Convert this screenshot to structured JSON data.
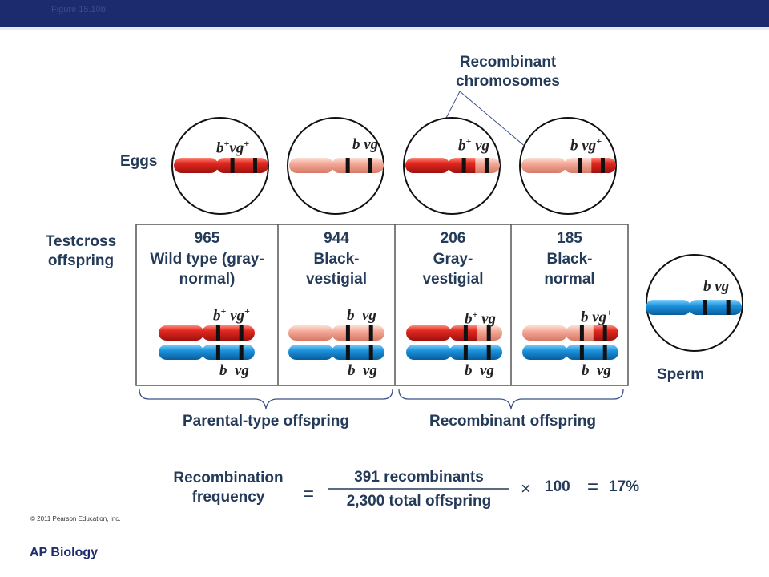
{
  "figure_label": "Figure 15.10b",
  "recombinant_chromosomes_label": "Recombinant chromosomes",
  "eggs_label": "Eggs",
  "testcross_label": "Testcross offspring",
  "sperm_label": "Sperm",
  "eggs": [
    {
      "gene1": "b",
      "sup1": "+",
      "gene2": "vg",
      "sup2": "+"
    },
    {
      "gene1": "b",
      "sup1": "",
      "gene2": "vg",
      "sup2": ""
    },
    {
      "gene1": "b",
      "sup1": "+",
      "gene2": "vg",
      "sup2": ""
    },
    {
      "gene1": "b",
      "sup1": "",
      "gene2": "vg",
      "sup2": "+"
    }
  ],
  "offspring": [
    {
      "count": "965",
      "phenotype": "Wild type (gray-normal)",
      "top_gene1": "b",
      "top_sup1": "+",
      "top_gene2": "vg",
      "top_sup2": "+",
      "bottom": "b  vg"
    },
    {
      "count": "944",
      "phenotype": "Black- vestigial",
      "top_gene1": "b",
      "top_sup1": "",
      "top_gene2": "vg",
      "top_sup2": "",
      "bottom": "b  vg"
    },
    {
      "count": "206",
      "phenotype": "Gray- vestigial",
      "top_gene1": "b",
      "top_sup1": "+",
      "top_gene2": "vg",
      "top_sup2": "",
      "bottom": "b  vg"
    },
    {
      "count": "185",
      "phenotype": "Black- normal",
      "top_gene1": "b",
      "top_sup1": "",
      "top_gene2": "vg",
      "top_sup2": "+",
      "bottom": "b  vg"
    }
  ],
  "sperm_genes": "b vg",
  "parental_label": "Parental-type offspring",
  "recombinant_label": "Recombinant offspring",
  "formula": {
    "label": "Recombination frequency",
    "equals": "=",
    "numerator": "391 recombinants",
    "denominator": "2,300 total offspring",
    "times": "×",
    "multiplier": "100",
    "equals2": "=",
    "result": "17%"
  },
  "copyright": "© 2011 Pearson Education, Inc.",
  "footer": "AP Biology",
  "colors": {
    "header_bar": "#1c2a6e",
    "red_chromosome": "#d8231f",
    "pink_chromosome": "#f2a493",
    "blue_chromosome": "#1b8fd6",
    "label_text": "#243a59"
  }
}
